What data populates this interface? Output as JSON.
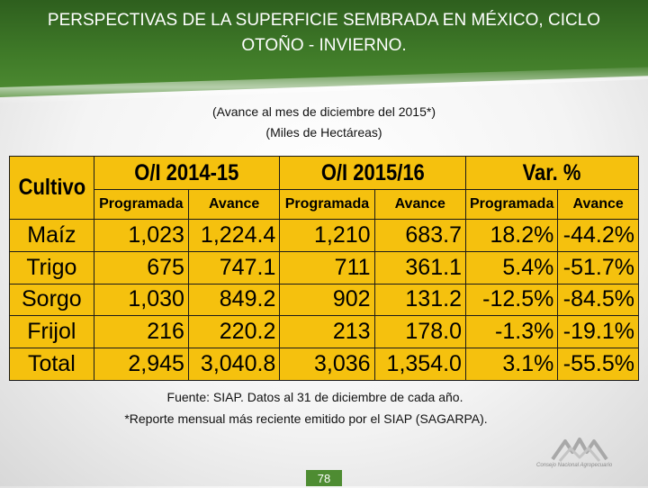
{
  "title": "PERSPECTIVAS DE LA SUPERFICIE SEMBRADA EN MÉXICO, CICLO OTOÑO - INVIERNO.",
  "subtitle1": "(Avance al mes de diciembre del 2015*)",
  "subtitle2": "(Miles de Hectáreas)",
  "table": {
    "headers": {
      "cultivo": "Cultivo",
      "group1": "O/I 2014-15",
      "group2": "O/I 2015/16",
      "group3": "Var. %",
      "programada": "Programada",
      "avance": "Avance"
    },
    "rows": [
      {
        "cultivo": "Maíz",
        "p1": "1,023",
        "a1": "1,224.4",
        "p2": "1,210",
        "a2": "683.7",
        "vp": "18.2%",
        "va": "-44.2%"
      },
      {
        "cultivo": "Trigo",
        "p1": "675",
        "a1": "747.1",
        "p2": "711",
        "a2": "361.1",
        "vp": "5.4%",
        "va": "-51.7%"
      },
      {
        "cultivo": "Sorgo",
        "p1": "1,030",
        "a1": "849.2",
        "p2": "902",
        "a2": "131.2",
        "vp": "-12.5%",
        "va": "-84.5%"
      },
      {
        "cultivo": "Frijol",
        "p1": "216",
        "a1": "220.2",
        "p2": "213",
        "a2": "178.0",
        "vp": "-1.3%",
        "va": "-19.1%"
      },
      {
        "cultivo": "Total",
        "p1": "2,945",
        "a1": "3,040.8",
        "p2": "3,036",
        "a2": "1,354.0",
        "vp": "3.1%",
        "va": "-55.5%"
      }
    ]
  },
  "footer1": "Fuente: SIAP. Datos al 31 de diciembre de cada año.",
  "footer2": "*Reporte mensual más reciente emitido por el SIAP (SAGARPA).",
  "page_number": "78",
  "logo_text": "Consejo Nacional Agropecuario",
  "colors": {
    "header_green": "#3f7a28",
    "table_yellow": "#f5c10e"
  }
}
